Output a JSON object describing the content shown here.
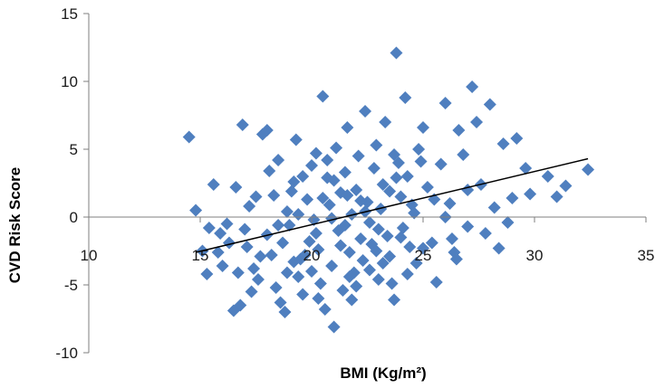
{
  "chart_data": {
    "type": "scatter",
    "title": "",
    "xlabel": "BMI (Kg/m²)",
    "ylabel": "CVD Risk Score",
    "xlim": [
      10,
      35
    ],
    "ylim": [
      -10,
      15
    ],
    "x_ticks": [
      "10",
      "15",
      "20",
      "25",
      "30",
      "35"
    ],
    "y_ticks": [
      "15",
      "10",
      "5",
      "0",
      "-5",
      "-10"
    ],
    "marker": "diamond",
    "marker_color": "#4F7FBF",
    "trendline": {
      "x": [
        14.8,
        32.4
      ],
      "y": [
        -2.6,
        4.3
      ],
      "color": "#000000"
    },
    "grid": false,
    "legend": "none",
    "series": [
      {
        "points": [
          [
            14.5,
            5.9
          ],
          [
            14.8,
            0.5
          ],
          [
            15.1,
            -2.5
          ],
          [
            15.3,
            -4.2
          ],
          [
            15.6,
            2.4
          ],
          [
            15.4,
            -0.8
          ],
          [
            15.9,
            -1.2
          ],
          [
            16.2,
            -0.5
          ],
          [
            16.5,
            -6.9
          ],
          [
            16.8,
            -6.5
          ],
          [
            16.6,
            2.2
          ],
          [
            16.9,
            6.8
          ],
          [
            17.2,
            0.8
          ],
          [
            17.1,
            -2.2
          ],
          [
            17.4,
            -3.8
          ],
          [
            17.6,
            -4.6
          ],
          [
            17.8,
            6.1
          ],
          [
            18.0,
            6.4
          ],
          [
            18.1,
            3.4
          ],
          [
            18.3,
            1.6
          ],
          [
            18.0,
            -1.3
          ],
          [
            18.2,
            -2.8
          ],
          [
            18.4,
            -5.2
          ],
          [
            18.6,
            -6.3
          ],
          [
            18.8,
            -7.0
          ],
          [
            18.5,
            4.2
          ],
          [
            18.9,
            0.4
          ],
          [
            19.0,
            -0.6
          ],
          [
            19.2,
            2.6
          ],
          [
            19.3,
            5.7
          ],
          [
            19.5,
            -3.1
          ],
          [
            19.4,
            -4.4
          ],
          [
            19.6,
            -5.7
          ],
          [
            19.8,
            1.3
          ],
          [
            19.9,
            -1.8
          ],
          [
            20.0,
            3.8
          ],
          [
            20.2,
            4.7
          ],
          [
            20.1,
            -0.2
          ],
          [
            20.3,
            -2.4
          ],
          [
            20.4,
            -4.9
          ],
          [
            20.5,
            8.9
          ],
          [
            20.6,
            -6.8
          ],
          [
            20.7,
            2.9
          ],
          [
            20.8,
            0.9
          ],
          [
            20.9,
            -3.6
          ],
          [
            21.0,
            -8.1
          ],
          [
            21.1,
            5.1
          ],
          [
            21.2,
            -1.0
          ],
          [
            21.3,
            1.8
          ],
          [
            21.4,
            -5.4
          ],
          [
            21.5,
            3.3
          ],
          [
            21.6,
            6.6
          ],
          [
            21.7,
            -2.6
          ],
          [
            21.8,
            0.2
          ],
          [
            21.9,
            -4.1
          ],
          [
            22.0,
            2.0
          ],
          [
            22.1,
            4.5
          ],
          [
            22.2,
            -1.6
          ],
          [
            22.3,
            -3.2
          ],
          [
            22.4,
            7.8
          ],
          [
            22.5,
            1.1
          ],
          [
            22.6,
            -0.4
          ],
          [
            22.7,
            -2.0
          ],
          [
            22.8,
            3.6
          ],
          [
            22.9,
            5.3
          ],
          [
            23.0,
            -4.6
          ],
          [
            23.1,
            0.6
          ],
          [
            23.2,
            2.4
          ],
          [
            23.3,
            7.0
          ],
          [
            23.4,
            -1.4
          ],
          [
            23.5,
            -2.9
          ],
          [
            23.6,
            -4.9
          ],
          [
            23.7,
            -6.1
          ],
          [
            23.8,
            12.1
          ],
          [
            23.9,
            4.0
          ],
          [
            24.0,
            1.5
          ],
          [
            24.1,
            -0.8
          ],
          [
            24.2,
            8.8
          ],
          [
            24.3,
            3.0
          ],
          [
            24.4,
            -2.2
          ],
          [
            24.6,
            0.3
          ],
          [
            24.7,
            -3.4
          ],
          [
            24.8,
            5.0
          ],
          [
            25.0,
            6.6
          ],
          [
            25.2,
            2.2
          ],
          [
            25.4,
            -1.9
          ],
          [
            25.6,
            -4.8
          ],
          [
            25.8,
            3.9
          ],
          [
            26.0,
            8.4
          ],
          [
            26.2,
            1.0
          ],
          [
            26.4,
            -2.6
          ],
          [
            26.6,
            6.4
          ],
          [
            26.8,
            4.6
          ],
          [
            27.0,
            -0.7
          ],
          [
            27.2,
            9.6
          ],
          [
            27.4,
            7.0
          ],
          [
            27.6,
            2.4
          ],
          [
            27.8,
            -1.2
          ],
          [
            28.0,
            8.3
          ],
          [
            28.2,
            0.7
          ],
          [
            28.4,
            -2.3
          ],
          [
            28.6,
            5.4
          ],
          [
            28.8,
            -0.4
          ],
          [
            29.0,
            1.4
          ],
          [
            29.2,
            5.8
          ],
          [
            29.6,
            3.6
          ],
          [
            29.8,
            1.7
          ],
          [
            30.6,
            3.0
          ],
          [
            31.0,
            1.5
          ],
          [
            31.4,
            2.3
          ],
          [
            32.4,
            3.5
          ],
          [
            16.0,
            -3.6
          ],
          [
            16.3,
            -1.9
          ],
          [
            17.0,
            -0.9
          ],
          [
            17.5,
            1.5
          ],
          [
            18.7,
            -1.9
          ],
          [
            19.1,
            1.9
          ],
          [
            19.7,
            -2.8
          ],
          [
            20.0,
            -4.0
          ],
          [
            20.5,
            1.4
          ],
          [
            21.0,
            2.7
          ],
          [
            21.5,
            -0.6
          ],
          [
            21.8,
            -6.1
          ],
          [
            22.2,
            1.2
          ],
          [
            22.6,
            -3.9
          ],
          [
            23.0,
            -0.9
          ],
          [
            23.5,
            1.9
          ],
          [
            24.0,
            -1.5
          ],
          [
            24.5,
            0.9
          ],
          [
            25.0,
            -2.3
          ],
          [
            25.5,
            1.3
          ],
          [
            26.0,
            0.0
          ],
          [
            26.5,
            -3.1
          ],
          [
            27.0,
            2.0
          ],
          [
            17.7,
            -2.9
          ],
          [
            18.5,
            -0.6
          ],
          [
            19.2,
            -3.3
          ],
          [
            20.2,
            -1.2
          ],
          [
            20.9,
            -0.1
          ],
          [
            21.6,
            1.6
          ],
          [
            22.4,
            0.4
          ],
          [
            23.8,
            2.9
          ],
          [
            24.9,
            4.1
          ],
          [
            19.6,
            3.0
          ],
          [
            20.7,
            4.2
          ],
          [
            21.3,
            -2.1
          ],
          [
            22.9,
            -2.5
          ],
          [
            18.9,
            -4.1
          ],
          [
            20.3,
            -6.0
          ],
          [
            21.7,
            -4.4
          ],
          [
            23.2,
            -3.4
          ],
          [
            17.3,
            -5.5
          ],
          [
            16.7,
            -4.1
          ],
          [
            15.8,
            -2.6
          ],
          [
            19.4,
            0.2
          ],
          [
            22.0,
            -5.1
          ],
          [
            23.7,
            4.6
          ],
          [
            24.3,
            -4.2
          ],
          [
            26.3,
            -1.6
          ]
        ]
      }
    ]
  }
}
